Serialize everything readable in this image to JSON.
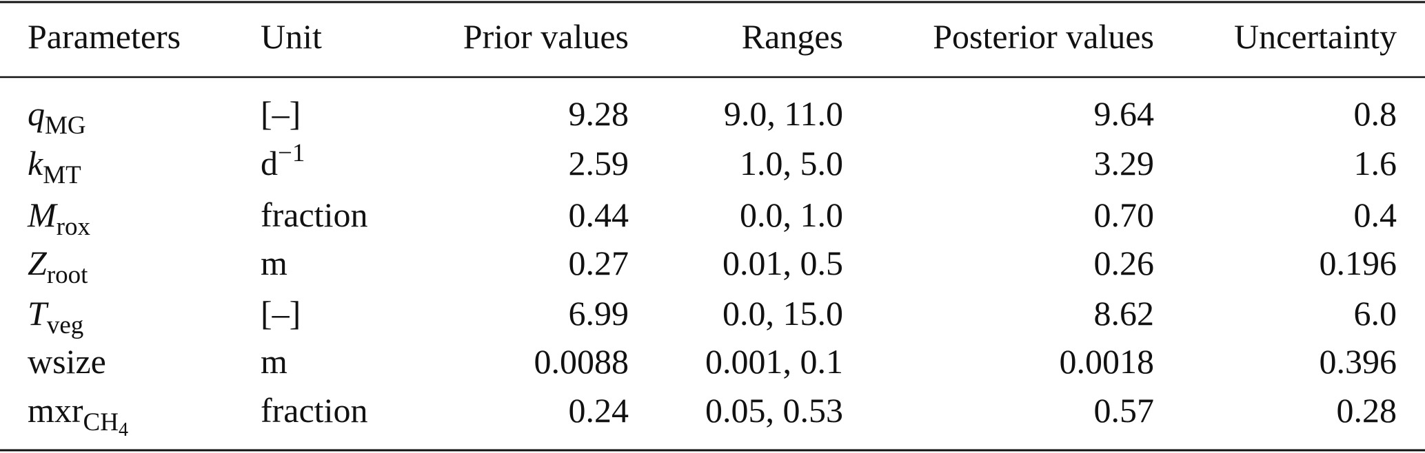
{
  "table": {
    "header": [
      "Parameters",
      "Unit",
      "Prior values",
      "Ranges",
      "Posterior values",
      "Uncertainty"
    ],
    "rows": [
      [
        {
          "symbol": "q",
          "sub": "MG"
        },
        "[–]",
        "9.28",
        "9.0, 11.0",
        "9.64",
        "0.8"
      ],
      [
        {
          "symbol": "k",
          "sub": "MT"
        },
        {
          "base": "d",
          "sup": "−1"
        },
        "2.59",
        "1.0, 5.0",
        "3.29",
        "1.6"
      ],
      [
        {
          "symbol": "M",
          "sub": "rox"
        },
        "fraction",
        "0.44",
        "0.0, 1.0",
        "0.70",
        "0.4"
      ],
      [
        {
          "symbol": "Z",
          "sub": "root"
        },
        "m",
        "0.27",
        "0.01, 0.5",
        "0.26",
        "0.196"
      ],
      [
        {
          "symbol": "T",
          "sub": "veg"
        },
        "[–]",
        "6.99",
        "0.0, 15.0",
        "8.62",
        "6.0"
      ],
      [
        "wsize",
        "m",
        "0.0088",
        "0.001, 0.1",
        "0.0018",
        "0.396"
      ],
      [
        {
          "base": "mxr",
          "sub": "CH",
          "subsub": "4"
        },
        "fraction",
        "0.24",
        "0.05, 0.53",
        "0.57",
        "0.28"
      ]
    ]
  }
}
